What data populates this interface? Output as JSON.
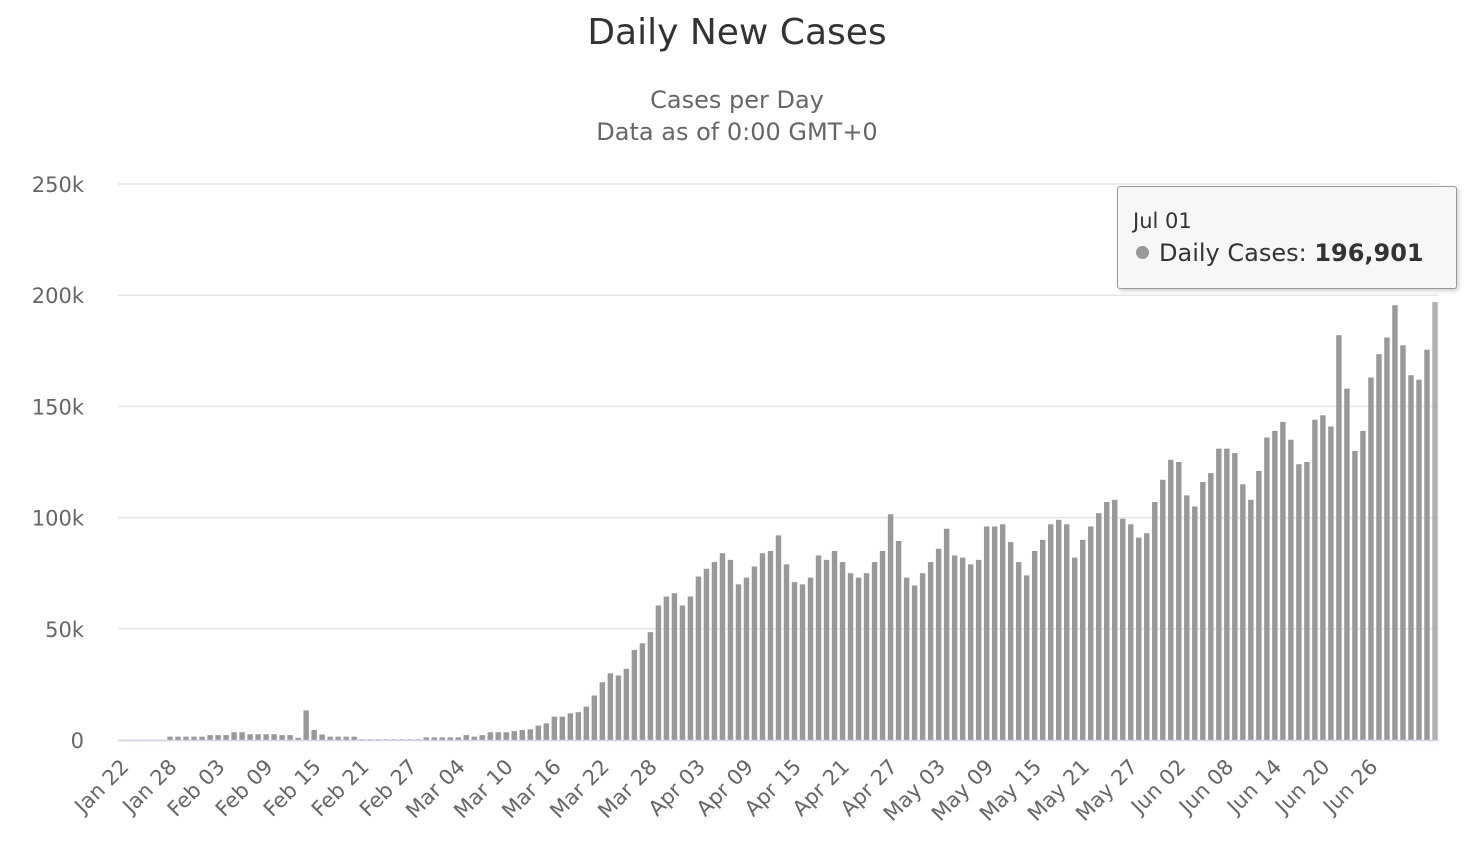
{
  "chart_data": {
    "type": "bar",
    "title": "Daily New Cases",
    "subtitle": [
      "Cases per Day",
      "Data as of 0:00 GMT+0"
    ],
    "xlabel": "",
    "ylabel": "",
    "ylim": [
      0,
      250000
    ],
    "yticks": [
      {
        "value": 0,
        "label": "0"
      },
      {
        "value": 50000,
        "label": "50k"
      },
      {
        "value": 100000,
        "label": "100k"
      },
      {
        "value": 150000,
        "label": "150k"
      },
      {
        "value": 200000,
        "label": "200k"
      },
      {
        "value": 250000,
        "label": "250k"
      }
    ],
    "xtick_labels": [
      "Jan 22",
      "Jan 28",
      "Feb 03",
      "Feb 09",
      "Feb 15",
      "Feb 21",
      "Feb 27",
      "Mar 04",
      "Mar 10",
      "Mar 16",
      "Mar 22",
      "Mar 28",
      "Apr 03",
      "Apr 09",
      "Apr 15",
      "Apr 21",
      "Apr 27",
      "May 03",
      "May 09",
      "May 15",
      "May 21",
      "May 27",
      "Jun 02",
      "Jun 08",
      "Jun 14",
      "Jun 20",
      "Jun 26"
    ],
    "xtick_every": 6,
    "start_date": "Jan 22",
    "grid": true,
    "legend": "none",
    "bar_color": "#999999",
    "highlight_color": "#b0b0b0",
    "series": [
      {
        "name": "Daily Cases",
        "values": [
          100,
          100,
          100,
          100,
          100,
          100,
          1500,
          1500,
          1500,
          1500,
          1500,
          2200,
          2200,
          2200,
          3500,
          3500,
          2600,
          2600,
          2600,
          2600,
          2200,
          2200,
          1000,
          13300,
          4500,
          2500,
          1500,
          1500,
          1500,
          1500,
          300,
          300,
          300,
          300,
          300,
          300,
          300,
          300,
          1200,
          1200,
          1200,
          1200,
          1200,
          2200,
          1500,
          2200,
          3500,
          3500,
          3500,
          4000,
          4500,
          4800,
          6500,
          7500,
          10500,
          10500,
          12000,
          12500,
          15000,
          20000,
          26000,
          30000,
          29000,
          32000,
          40500,
          43500,
          48500,
          60500,
          64500,
          66000,
          60500,
          64500,
          73500,
          77000,
          80000,
          84000,
          81000,
          70000,
          73000,
          78000,
          84000,
          85000,
          92000,
          79000,
          71000,
          70000,
          73000,
          83000,
          81000,
          85000,
          80000,
          75000,
          73000,
          75000,
          80000,
          85000,
          101500,
          89500,
          73000,
          69500,
          75000,
          80000,
          86000,
          95000,
          83000,
          82000,
          79000,
          81000,
          96000,
          96000,
          97000,
          89000,
          80000,
          74000,
          85000,
          90000,
          97000,
          99000,
          97000,
          82000,
          90000,
          96000,
          102000,
          107000,
          108000,
          99500,
          97000,
          91000,
          93000,
          107000,
          117000,
          126000,
          125000,
          110000,
          105000,
          116000,
          120000,
          131000,
          131000,
          129000,
          115000,
          108000,
          121000,
          136000,
          139000,
          143000,
          135000,
          124000,
          125000,
          144000,
          146000,
          141000,
          182000,
          158000,
          130000,
          139000,
          163000,
          173500,
          181000,
          195500,
          177500,
          164000,
          162000,
          175500,
          196901
        ]
      }
    ]
  },
  "tooltip": {
    "date": "Jul 01",
    "series_label": "Daily Cases: ",
    "value": "196,901"
  }
}
